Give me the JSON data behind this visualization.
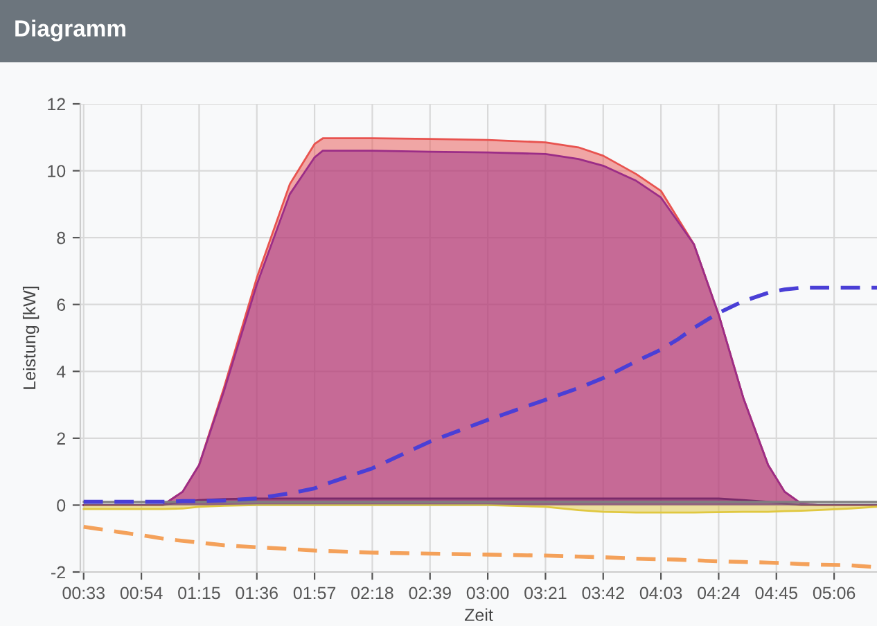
{
  "chart_data": {
    "type": "area",
    "title": "Diagramm",
    "xlabel": "Zeit",
    "ylabel": "Leistung [kW]",
    "x": [
      0.55,
      0.9,
      1.03,
      1.15,
      1.25,
      1.4,
      1.6,
      1.8,
      1.95,
      2.0,
      2.3,
      2.65,
      3.0,
      3.35,
      3.55,
      3.7,
      3.9,
      4.05,
      4.15,
      4.25,
      4.4,
      4.55,
      4.7,
      4.8,
      4.9,
      5.0,
      5.2,
      5.36
    ],
    "series": [
      {
        "color": "#e8534f",
        "values": [
          0,
          0,
          0,
          0.4,
          1.2,
          3.5,
          6.8,
          9.6,
          10.8,
          10.97,
          10.97,
          10.95,
          10.92,
          10.85,
          10.7,
          10.45,
          9.9,
          9.4,
          8.6,
          7.8,
          5.7,
          3.2,
          1.2,
          0.4,
          0.05,
          0,
          0,
          0
        ]
      },
      {
        "color": "#9b2d87",
        "values": [
          0,
          0,
          0,
          0.4,
          1.2,
          3.4,
          6.6,
          9.3,
          10.4,
          10.6,
          10.6,
          10.57,
          10.55,
          10.5,
          10.35,
          10.15,
          9.7,
          9.2,
          8.5,
          7.8,
          5.7,
          3.2,
          1.2,
          0.4,
          0.05,
          0,
          0,
          0
        ]
      },
      {
        "color": "#7a2a6a",
        "values": [
          0,
          0,
          0,
          0.1,
          0.15,
          0.18,
          0.2,
          0.2,
          0.2,
          0.2,
          0.2,
          0.2,
          0.2,
          0.2,
          0.2,
          0.2,
          0.2,
          0.2,
          0.2,
          0.2,
          0.2,
          0.15,
          0.1,
          0.05,
          0,
          0,
          0,
          0
        ]
      },
      {
        "color": "#e0c840",
        "values": [
          -0.12,
          -0.12,
          -0.12,
          -0.1,
          -0.05,
          -0.02,
          0,
          0,
          0,
          0,
          0,
          0,
          0,
          -0.05,
          -0.15,
          -0.2,
          -0.22,
          -0.22,
          -0.22,
          -0.22,
          -0.21,
          -0.2,
          -0.2,
          -0.18,
          -0.17,
          -0.15,
          -0.1,
          -0.05
        ]
      },
      {
        "color": "#808080",
        "values": [
          0.1,
          0.1,
          0.1,
          null,
          null,
          null,
          null,
          null,
          null,
          null,
          null,
          null,
          null,
          null,
          null,
          null,
          null,
          null,
          null,
          null,
          null,
          null,
          null,
          null,
          0.1,
          0.1,
          0.1,
          0.1
        ]
      },
      {
        "type": "line",
        "color": "#4a3fd6",
        "line_style": "dashed",
        "values": [
          0.1,
          0.1,
          0.1,
          0.12,
          0.12,
          0.14,
          0.2,
          0.35,
          0.5,
          0.6,
          1.1,
          1.9,
          2.55,
          3.15,
          3.5,
          3.8,
          4.3,
          4.65,
          4.95,
          5.3,
          5.75,
          6.1,
          6.35,
          6.45,
          6.5,
          6.5,
          6.5,
          6.5
        ]
      },
      {
        "type": "line",
        "color": "#f4a15a",
        "line_style": "dashed",
        "values": [
          -0.65,
          -0.9,
          -1.0,
          -1.07,
          -1.12,
          -1.2,
          -1.26,
          -1.31,
          -1.36,
          -1.37,
          -1.42,
          -1.45,
          -1.48,
          -1.51,
          -1.54,
          -1.56,
          -1.6,
          -1.62,
          -1.63,
          -1.65,
          -1.68,
          -1.7,
          -1.72,
          -1.74,
          -1.76,
          -1.78,
          -1.8,
          -1.86
        ]
      }
    ],
    "xlim": [
      0.53,
      5.36
    ],
    "ylim": [
      -2,
      12
    ],
    "xticks": [
      {
        "value": 0.55,
        "label": "00:33"
      },
      {
        "value": 0.9,
        "label": "00:54"
      },
      {
        "value": 1.25,
        "label": "01:15"
      },
      {
        "value": 1.6,
        "label": "01:36"
      },
      {
        "value": 1.95,
        "label": "01:57"
      },
      {
        "value": 2.3,
        "label": "02:18"
      },
      {
        "value": 2.65,
        "label": "02:39"
      },
      {
        "value": 3.0,
        "label": "03:00"
      },
      {
        "value": 3.35,
        "label": "03:21"
      },
      {
        "value": 3.7,
        "label": "03:42"
      },
      {
        "value": 4.05,
        "label": "04:03"
      },
      {
        "value": 4.4,
        "label": "04:24"
      },
      {
        "value": 4.75,
        "label": "04:45"
      },
      {
        "value": 5.1,
        "label": "05:06"
      }
    ],
    "yticks": [
      -2,
      0,
      2,
      4,
      6,
      8,
      10,
      12
    ],
    "grid": true,
    "legend": false
  }
}
